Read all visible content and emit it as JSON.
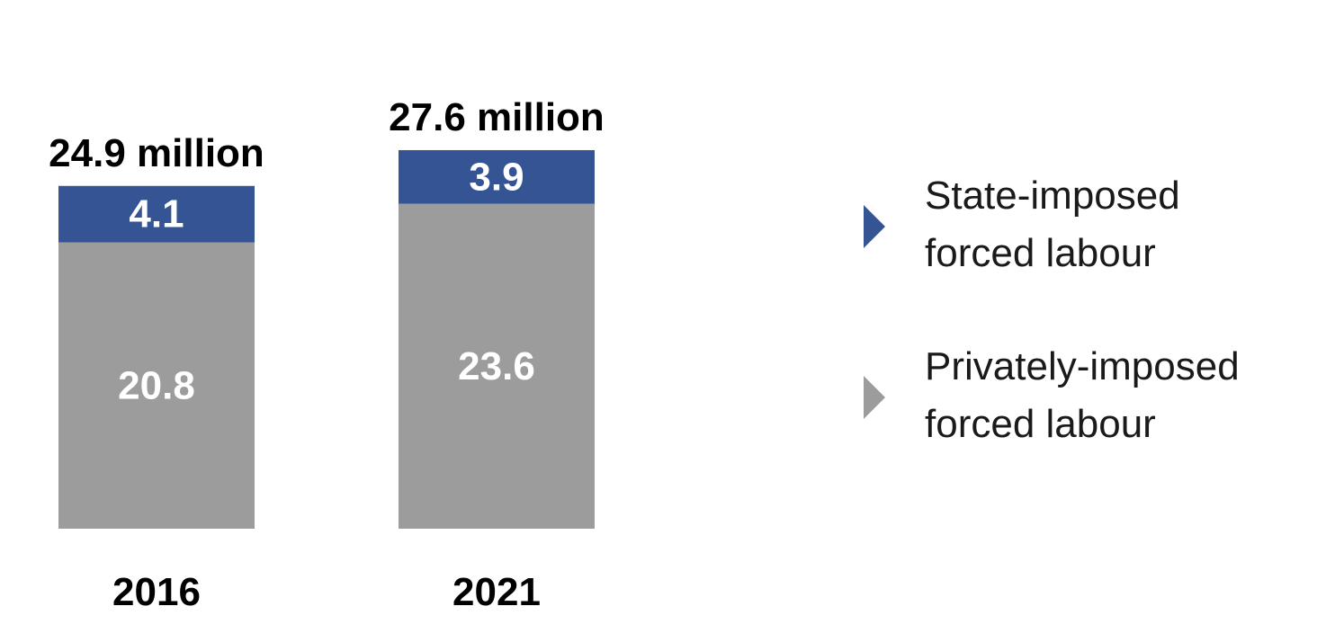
{
  "chart_data": {
    "type": "bar",
    "stacked": true,
    "categories": [
      "2016",
      "2021"
    ],
    "totals": [
      {
        "value": 24.9,
        "label": "24.9 million"
      },
      {
        "value": 27.6,
        "label": "27.6 million"
      }
    ],
    "series": [
      {
        "name": "Privately-imposed forced labour",
        "name_lines": [
          "Privately-imposed",
          "forced labour"
        ],
        "values": [
          20.8,
          23.6
        ],
        "labels": [
          "20.8",
          "23.6"
        ],
        "color": "#9c9c9c"
      },
      {
        "name": "State-imposed forced labour",
        "name_lines": [
          "State-imposed",
          "forced labour"
        ],
        "values": [
          4.1,
          3.9
        ],
        "labels": [
          "4.1",
          "3.9"
        ],
        "color": "#355494"
      }
    ],
    "legend_order": [
      1,
      0
    ],
    "legend_position": "right",
    "grid": false,
    "title": "",
    "xlabel": "",
    "ylabel": ""
  }
}
